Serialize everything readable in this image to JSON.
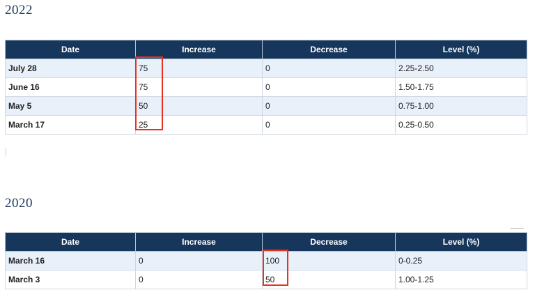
{
  "sections": [
    {
      "year": "2022",
      "headers": [
        "Date",
        "Increase",
        "Decrease",
        "Level (%)"
      ],
      "rows": [
        {
          "date": "July 28",
          "increase": "75",
          "decrease": "0",
          "level": "2.25-2.50"
        },
        {
          "date": "June 16",
          "increase": "75",
          "decrease": "0",
          "level": "1.50-1.75"
        },
        {
          "date": "May 5",
          "increase": "50",
          "decrease": "0",
          "level": "0.75-1.00"
        },
        {
          "date": "March 17",
          "increase": "25",
          "decrease": "0",
          "level": "0.25-0.50"
        }
      ]
    },
    {
      "year": "2020",
      "headers": [
        "Date",
        "Increase",
        "Decrease",
        "Level (%)"
      ],
      "rows": [
        {
          "date": "March 16",
          "increase": "0",
          "decrease": "100",
          "level": "0-0.25"
        },
        {
          "date": "March 3",
          "increase": "0",
          "decrease": "50",
          "level": "1.00-1.25"
        }
      ]
    }
  ],
  "colors": {
    "header_bg": "#16365c",
    "heading_text": "#1b365d",
    "row_alt_bg": "#e8f0f9",
    "highlight_border": "#e8321f"
  }
}
